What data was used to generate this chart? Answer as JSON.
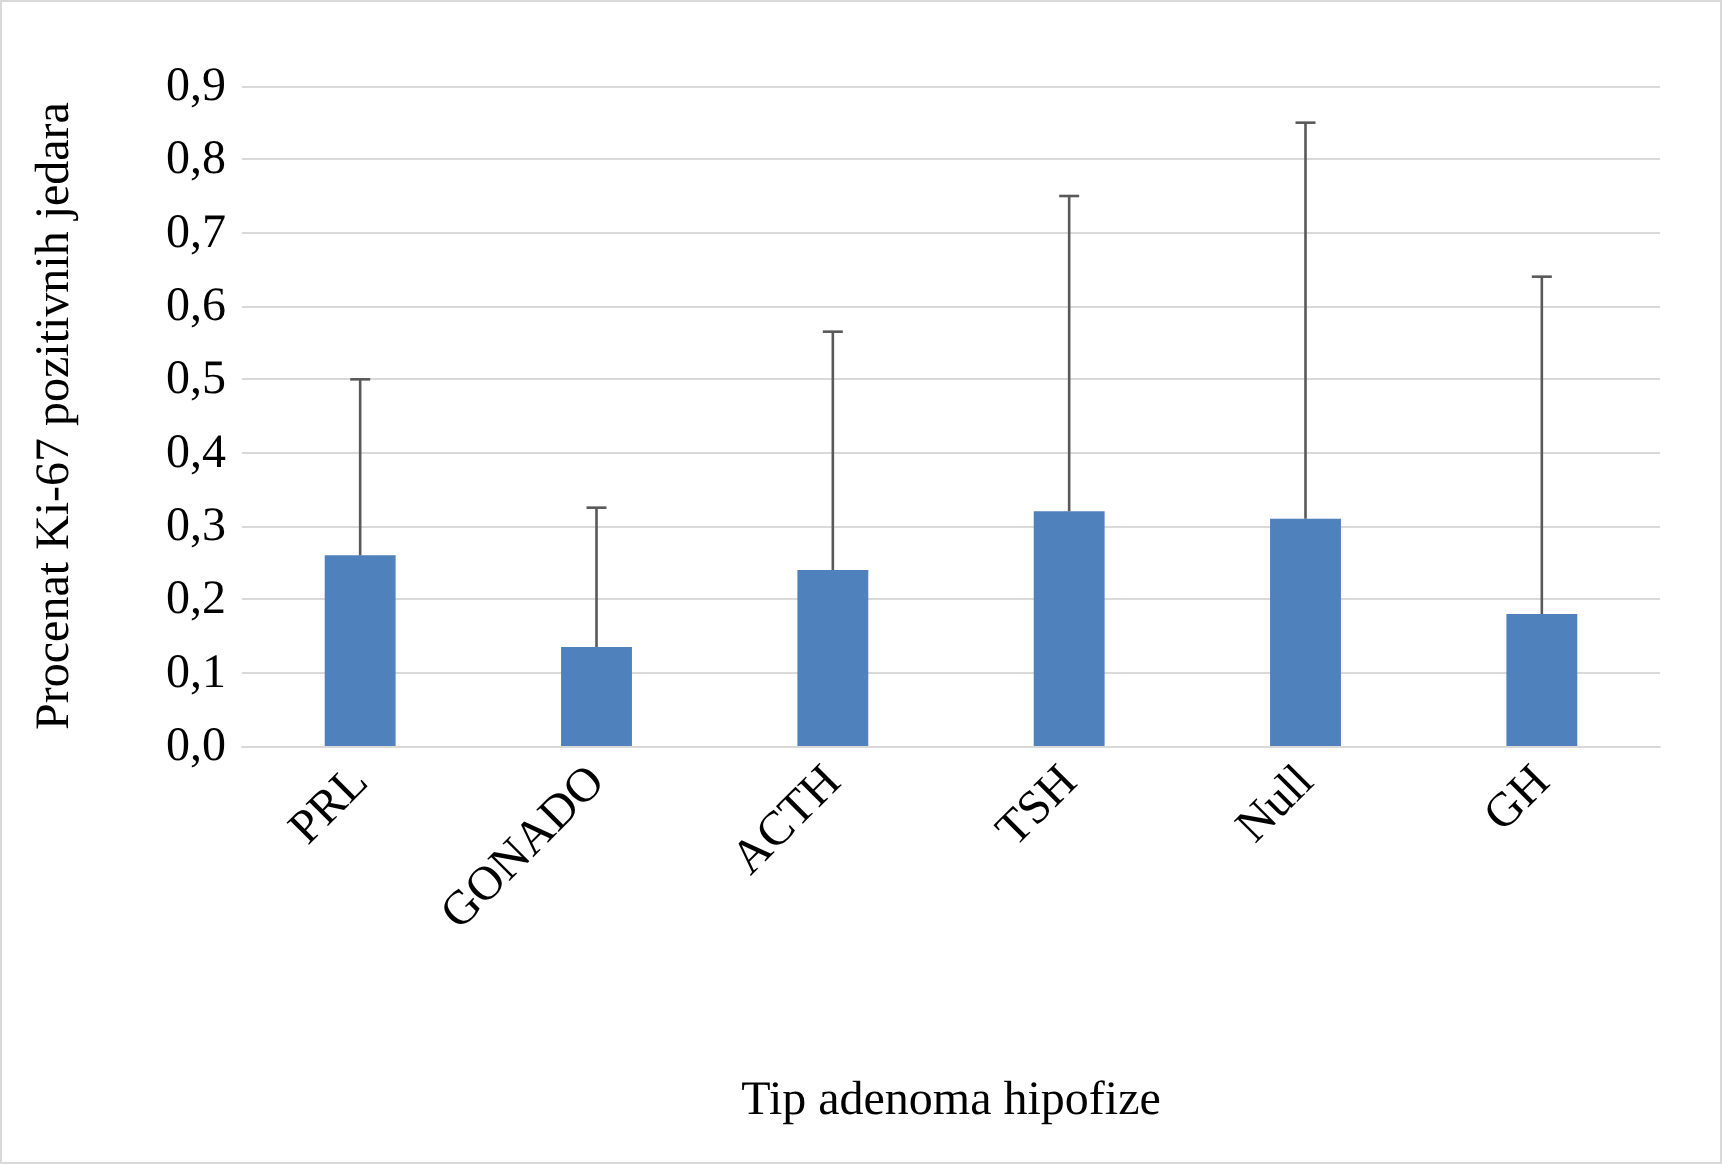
{
  "chart_data": {
    "type": "bar",
    "xlabel": "Tip adenoma hipofize",
    "ylabel": "Procenat Ki-67 pozitivnih jedara",
    "categories": [
      "PRL",
      "GONADO",
      "ACTH",
      "TSH",
      "Null",
      "GH"
    ],
    "values": [
      0.26,
      0.135,
      0.24,
      0.32,
      0.31,
      0.18
    ],
    "errors": [
      [
        0.26,
        0.5
      ],
      [
        0.135,
        0.325
      ],
      [
        0.24,
        0.565
      ],
      [
        0.32,
        0.75
      ],
      [
        0.31,
        0.85
      ],
      [
        0.18,
        0.64
      ]
    ],
    "color": "#4f81bd",
    "ylim": [
      0,
      0.9
    ],
    "yticks": [
      {
        "value": 0,
        "label": "0,0"
      },
      {
        "value": 0.1,
        "label": "0,1"
      },
      {
        "value": 0.2,
        "label": "0,2"
      },
      {
        "value": 0.3,
        "label": "0,3"
      },
      {
        "value": 0.4,
        "label": "0,4"
      },
      {
        "value": 0.5,
        "label": "0,5"
      },
      {
        "value": 0.6,
        "label": "0,6"
      },
      {
        "value": 0.7,
        "label": "0,7"
      },
      {
        "value": 0.8,
        "label": "0,8"
      },
      {
        "value": 0.9,
        "label": "0,9"
      }
    ],
    "grid": "y"
  }
}
